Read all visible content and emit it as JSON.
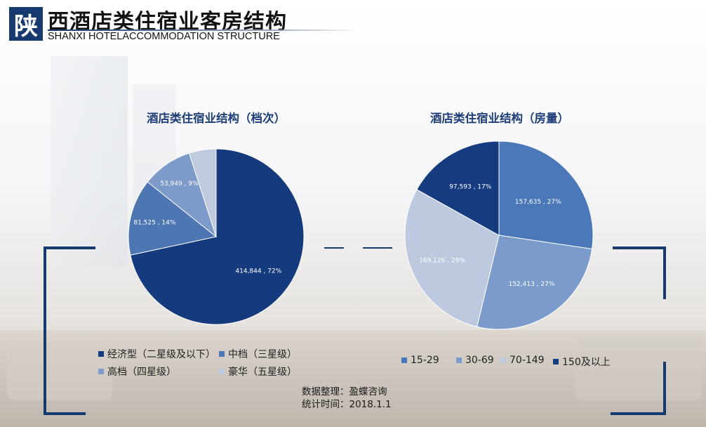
{
  "header": {
    "badge": "陕",
    "title": "西酒店类住宿业客房结构",
    "subtitle": "SHANXI HOTELACCOMMODATION STRUCTURE"
  },
  "chart_data": [
    {
      "type": "pie",
      "title": "酒店类住宿业结构（档次）",
      "slices": [
        {
          "name": "经济型（二星级及以下）",
          "value": 414844,
          "percent": 72,
          "label": "414,844 , 72%",
          "color": "#153a7d"
        },
        {
          "name": "中档（三星级）",
          "value": 81525,
          "percent": 14,
          "label": "81,525 , 14%",
          "color": "#4d76b3"
        },
        {
          "name": "高档（四星级）",
          "value": 53949,
          "percent": 9,
          "label": "53,949 , 9%",
          "color": "#7e9ac8"
        },
        {
          "name": "豪华（五星级）",
          "value": 28800,
          "percent": 5,
          "label": "",
          "color": "#bfcadf"
        }
      ],
      "legend": "bottom"
    },
    {
      "type": "pie",
      "title": "酒店类住宿业结构（房量）",
      "slices": [
        {
          "name": "15-29",
          "value": 157635,
          "percent": 27,
          "label": "157,635 , 27%",
          "color": "#4b78b9"
        },
        {
          "name": "30-69",
          "value": 152413,
          "percent": 27,
          "label": "152,413 , 27%",
          "color": "#7b9bcb"
        },
        {
          "name": "70-149",
          "value": 169126,
          "percent": 29,
          "label": "169,126 , 29%",
          "color": "#bdc9de"
        },
        {
          "name": "150及以上",
          "value": 97593,
          "percent": 17,
          "label": "97,593 , 17%",
          "color": "#163b80"
        }
      ],
      "legend": "bottom"
    }
  ],
  "source": {
    "line1": "数据整理：盈蝶咨询",
    "line2": "统计时间：2018.1.1"
  }
}
